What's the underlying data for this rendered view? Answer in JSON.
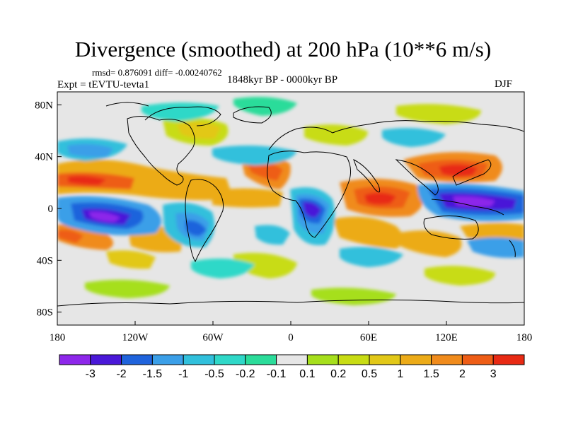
{
  "title": "Divergence (smoothed) at 200 hPa (10**6 m/s)",
  "stats": "rmsd= 0.876091 diff= -0.00240762",
  "experiment": "Expt = tEVTU-tevta1",
  "period": "1848kyr BP - 0000kyr BP",
  "season": "DJF",
  "map": {
    "projection": "cylindrical equidistant",
    "lon_range": [
      -180,
      180
    ],
    "lat_range": [
      -90,
      90
    ],
    "x_tick_labels": [
      "180",
      "120W",
      "60W",
      "0",
      "60E",
      "120E",
      "180"
    ],
    "y_tick_labels": [
      "80N",
      "40N",
      "0",
      "40S",
      "80S"
    ],
    "background_color": "#e6e6e6",
    "coastline_color": "#000000"
  },
  "colorbar": {
    "colors": [
      "#8d27ea",
      "#4a18d8",
      "#1f63dc",
      "#3b9fe8",
      "#31c0dc",
      "#2fd8c8",
      "#2bdc9a",
      "#e6e6e6",
      "#a6df1c",
      "#c8dc14",
      "#e2c818",
      "#ecab18",
      "#f08b1c",
      "#ee5d16",
      "#e82a14"
    ],
    "labels": [
      "-3",
      "-2",
      "-1.5",
      "-1",
      "-0.5",
      "-0.2",
      "-0.1",
      "0.1",
      "0.2",
      "0.5",
      "1",
      "1.5",
      "2",
      "3"
    ]
  }
}
